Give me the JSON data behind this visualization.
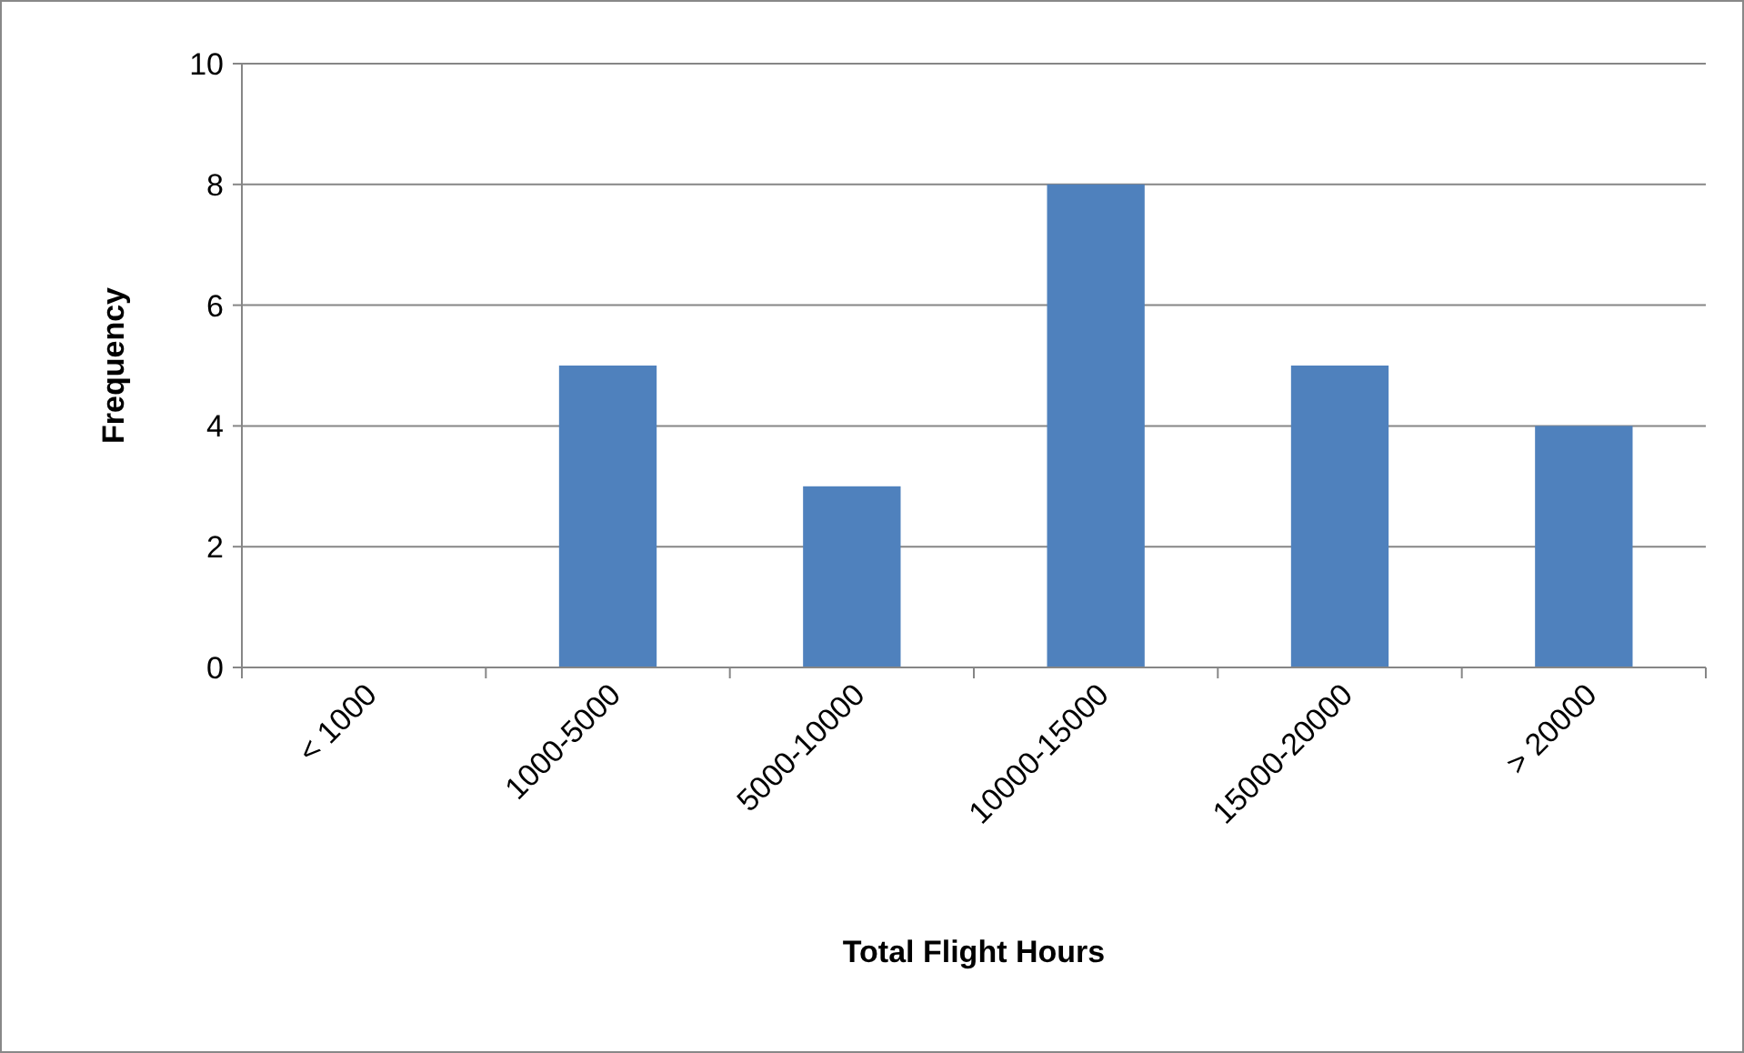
{
  "chart_data": {
    "type": "bar",
    "xlabel": "Total Flight Hours",
    "ylabel": "Frequency",
    "categories": [
      "< 1000",
      "1000-5000",
      "5000-10000",
      "10000-15000",
      "15000-20000",
      "> 20000"
    ],
    "values": [
      0,
      5,
      3,
      8,
      5,
      4
    ],
    "color": "#4f81bd",
    "ylim": [
      0,
      10
    ],
    "yticks": [
      0,
      2,
      4,
      6,
      8,
      10
    ],
    "grid": "y"
  }
}
